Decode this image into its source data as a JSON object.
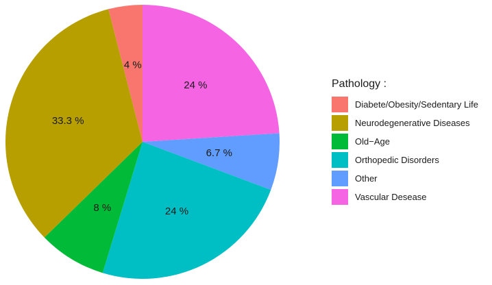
{
  "chart_data": {
    "type": "pie",
    "legend_title": "Pathology :",
    "legend_position": "right",
    "slices": [
      {
        "name": "Vascular Desease",
        "value": 24,
        "label": "24 %",
        "color": "#F564E3"
      },
      {
        "name": "Other",
        "value": 6.7,
        "label": "6.7 %",
        "color": "#619CFF"
      },
      {
        "name": "Orthopedic Disorders",
        "value": 24,
        "label": "24 %",
        "color": "#00BFC4"
      },
      {
        "name": "Old−Age",
        "value": 8,
        "label": "8 %",
        "color": "#00BA38"
      },
      {
        "name": "Neurodegenerative Diseases",
        "value": 33.3,
        "label": "33.3 %",
        "color": "#B79F00"
      },
      {
        "name": "Diabete/Obesity/Sedentary Life",
        "value": 4,
        "label": "4 %",
        "color": "#F8766D"
      }
    ],
    "legend_order": [
      "Diabete/Obesity/Sedentary Life",
      "Neurodegenerative Diseases",
      "Old−Age",
      "Orthopedic Disorders",
      "Other",
      "Vascular Desease"
    ]
  }
}
